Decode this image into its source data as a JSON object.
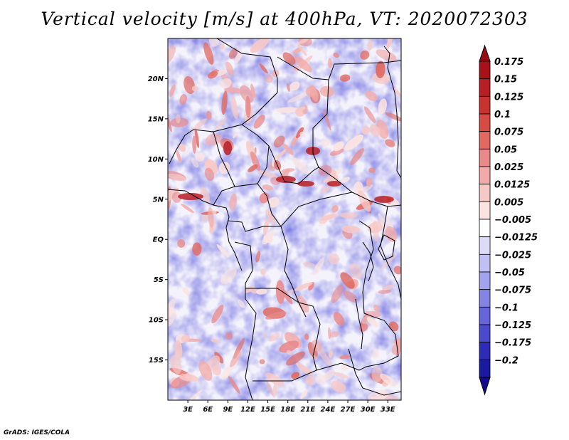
{
  "title": "Vertical velocity [m/s] at 400hPa, VT: 2020072303",
  "credit": "GrADS: IGES/COLA",
  "map": {
    "lon_range": [
      0,
      35
    ],
    "lat_range": [
      -20,
      25
    ],
    "lat_ticks": [
      {
        "value": 20,
        "label": "20N"
      },
      {
        "value": 15,
        "label": "15N"
      },
      {
        "value": 10,
        "label": "10N"
      },
      {
        "value": 5,
        "label": "5N"
      },
      {
        "value": 0,
        "label": "EQ"
      },
      {
        "value": -5,
        "label": "5S"
      },
      {
        "value": -10,
        "label": "10S"
      },
      {
        "value": -15,
        "label": "15S"
      }
    ],
    "lon_ticks": [
      {
        "value": 3,
        "label": "3E"
      },
      {
        "value": 6,
        "label": "6E"
      },
      {
        "value": 9,
        "label": "9E"
      },
      {
        "value": 12,
        "label": "12E"
      },
      {
        "value": 15,
        "label": "15E"
      },
      {
        "value": 18,
        "label": "18E"
      },
      {
        "value": 21,
        "label": "21E"
      },
      {
        "value": 24,
        "label": "24E"
      },
      {
        "value": 27,
        "label": "27E"
      },
      {
        "value": 30,
        "label": "30E"
      },
      {
        "value": 33,
        "label": "33E"
      }
    ]
  },
  "colorbar": {
    "levels": [
      {
        "label": "0.175",
        "color": "#a8101a"
      },
      {
        "label": "0.15",
        "color": "#b81f24"
      },
      {
        "label": "0.125",
        "color": "#c8322f"
      },
      {
        "label": "0.1",
        "color": "#d84a44"
      },
      {
        "label": "0.075",
        "color": "#e06a62"
      },
      {
        "label": "0.05",
        "color": "#e8898a"
      },
      {
        "label": "0.025",
        "color": "#f2aaa8"
      },
      {
        "label": "0.0125",
        "color": "#f7c9c6"
      },
      {
        "label": "0.005",
        "color": "#fbe3e1"
      },
      {
        "label": "−0.005",
        "color": "#ffffff"
      },
      {
        "label": "−0.0125",
        "color": "#dcdcf8"
      },
      {
        "label": "−0.025",
        "color": "#c0c0f4"
      },
      {
        "label": "−0.05",
        "color": "#a2a2ee"
      },
      {
        "label": "−0.075",
        "color": "#8484e4"
      },
      {
        "label": "−0.1",
        "color": "#6666da"
      },
      {
        "label": "−0.125",
        "color": "#4a4acc"
      },
      {
        "label": "−0.175",
        "color": "#2c2cb8"
      },
      {
        "label": "−0.2",
        "color": "#1a1aa0"
      }
    ],
    "top_arrow_color": "#9a0a14",
    "bottom_arrow_color": "#140a90"
  }
}
